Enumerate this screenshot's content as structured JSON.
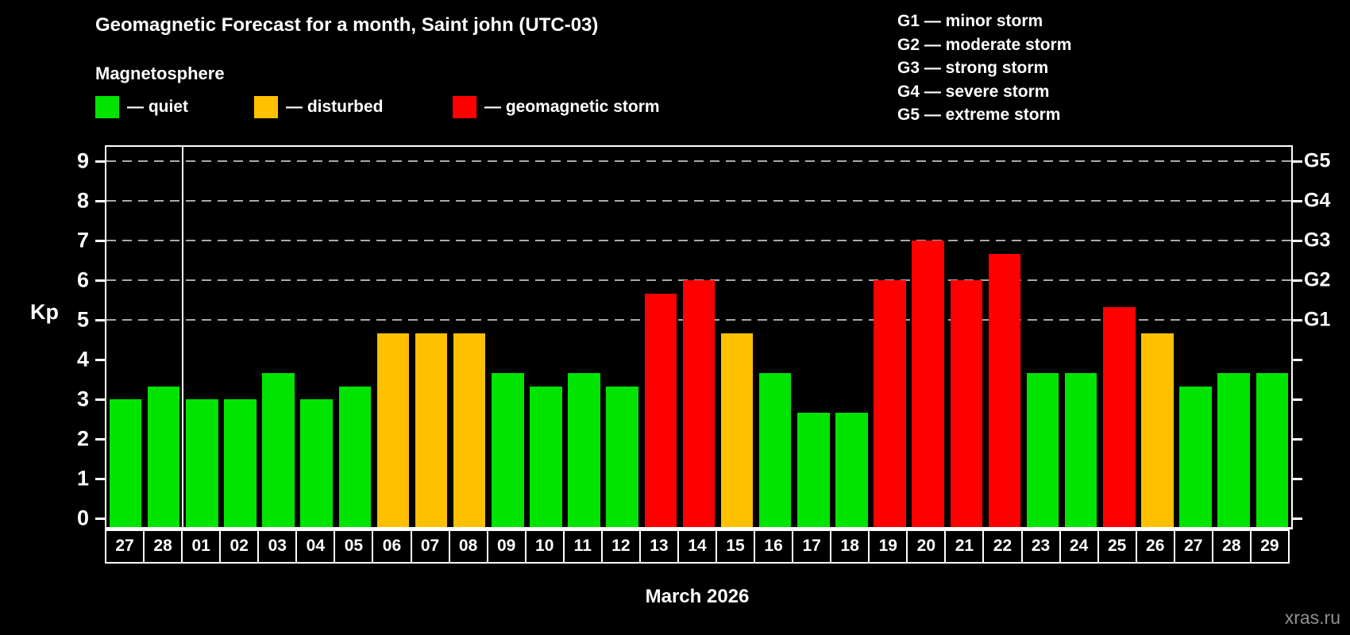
{
  "header": {
    "title": "Geomagnetic Forecast for a month, Saint john (UTC-03)",
    "subtitle": "Magnetosphere"
  },
  "legend": {
    "items": [
      {
        "key": "quiet",
        "label": "— quiet",
        "color": "#00e400"
      },
      {
        "key": "disturbed",
        "label": "— disturbed",
        "color": "#ffc000"
      },
      {
        "key": "storm",
        "label": "— geomagnetic storm",
        "color": "#ff0000"
      }
    ]
  },
  "g_legend": {
    "items": [
      "G1 — minor storm",
      "G2 — moderate storm",
      "G3 — strong storm",
      "G4 — severe storm",
      "G5 — extreme storm"
    ]
  },
  "chart_data": {
    "type": "bar",
    "ylabel": "Kp",
    "ylim": [
      0,
      9.4
    ],
    "yticks": [
      "0",
      "1",
      "2",
      "3",
      "4",
      "5",
      "6",
      "7",
      "8",
      "9"
    ],
    "gridlines": [
      5,
      6,
      7,
      8,
      9
    ],
    "grid": true,
    "legend_position": "top",
    "right_axis_labels": [
      {
        "kp": 5,
        "label": "G1"
      },
      {
        "kp": 6,
        "label": "G2"
      },
      {
        "kp": 7,
        "label": "G3"
      },
      {
        "kp": 8,
        "label": "G4"
      },
      {
        "kp": 9,
        "label": "G5"
      }
    ],
    "status_colors": {
      "quiet": "#00e400",
      "disturbed": "#ffc000",
      "storm": "#ff0000"
    },
    "separator_after_index": 1,
    "bars": [
      {
        "day": "27",
        "kp": 3.0,
        "status": "quiet"
      },
      {
        "day": "28",
        "kp": 3.33,
        "status": "quiet"
      },
      {
        "day": "01",
        "kp": 3.0,
        "status": "quiet"
      },
      {
        "day": "02",
        "kp": 3.0,
        "status": "quiet"
      },
      {
        "day": "03",
        "kp": 3.67,
        "status": "quiet"
      },
      {
        "day": "04",
        "kp": 3.0,
        "status": "quiet"
      },
      {
        "day": "05",
        "kp": 3.33,
        "status": "quiet"
      },
      {
        "day": "06",
        "kp": 4.67,
        "status": "disturbed"
      },
      {
        "day": "07",
        "kp": 4.67,
        "status": "disturbed"
      },
      {
        "day": "08",
        "kp": 4.67,
        "status": "disturbed"
      },
      {
        "day": "09",
        "kp": 3.67,
        "status": "quiet"
      },
      {
        "day": "10",
        "kp": 3.33,
        "status": "quiet"
      },
      {
        "day": "11",
        "kp": 3.67,
        "status": "quiet"
      },
      {
        "day": "12",
        "kp": 3.33,
        "status": "quiet"
      },
      {
        "day": "13",
        "kp": 5.67,
        "status": "storm"
      },
      {
        "day": "14",
        "kp": 6.0,
        "status": "storm"
      },
      {
        "day": "15",
        "kp": 4.67,
        "status": "disturbed"
      },
      {
        "day": "16",
        "kp": 3.67,
        "status": "quiet"
      },
      {
        "day": "17",
        "kp": 2.67,
        "status": "quiet"
      },
      {
        "day": "18",
        "kp": 2.67,
        "status": "quiet"
      },
      {
        "day": "19",
        "kp": 6.0,
        "status": "storm"
      },
      {
        "day": "20",
        "kp": 7.0,
        "status": "storm"
      },
      {
        "day": "21",
        "kp": 6.0,
        "status": "storm"
      },
      {
        "day": "22",
        "kp": 6.67,
        "status": "storm"
      },
      {
        "day": "23",
        "kp": 3.67,
        "status": "quiet"
      },
      {
        "day": "24",
        "kp": 3.67,
        "status": "quiet"
      },
      {
        "day": "25",
        "kp": 5.33,
        "status": "storm"
      },
      {
        "day": "26",
        "kp": 4.67,
        "status": "disturbed"
      },
      {
        "day": "27",
        "kp": 3.33,
        "status": "quiet"
      },
      {
        "day": "28",
        "kp": 3.67,
        "status": "quiet"
      },
      {
        "day": "29",
        "kp": 3.67,
        "status": "quiet"
      }
    ]
  },
  "footer": {
    "caption": "March 2026",
    "watermark": "xras.ru"
  }
}
